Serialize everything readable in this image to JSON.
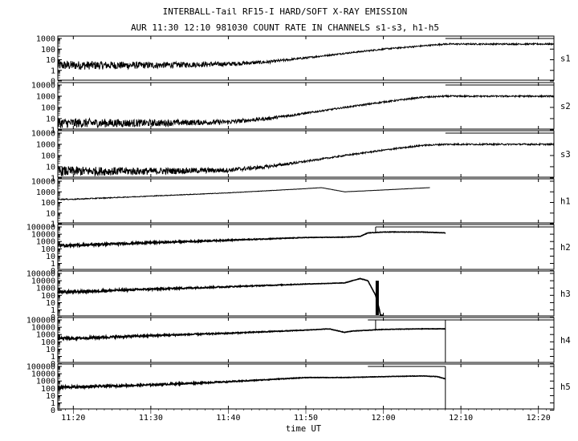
{
  "chart_data": {
    "type": "line",
    "title": "INTERBALL-Tail RF15-I HARD/SOFT X-RAY EMISSION",
    "subtitle": "AUR 11:30 12:10 981030  COUNT RATE IN CHANNELS s1-s3, h1-h5",
    "xlabel": "time UT",
    "x_ticks": [
      "11:20",
      "11:30",
      "11:40",
      "11:50",
      "12:00",
      "12:10",
      "12:20"
    ],
    "x_range": [
      "11:18",
      "12:22"
    ],
    "yscale": "log",
    "panels": [
      {
        "name": "s1",
        "ylim": [
          1,
          1000
        ],
        "yticks": [
          "1000",
          "100",
          "10",
          "1",
          "0"
        ],
        "x": [
          "11:18",
          "11:30",
          "11:40",
          "11:45",
          "11:50",
          "11:55",
          "12:00",
          "12:05",
          "12:08",
          "12:22"
        ],
        "values": [
          3,
          3,
          4,
          6,
          15,
          40,
          100,
          200,
          300,
          300
        ]
      },
      {
        "name": "s2",
        "ylim": [
          1,
          10000
        ],
        "yticks": [
          "10000",
          "1000",
          "100",
          "10",
          "1"
        ],
        "x": [
          "11:18",
          "11:30",
          "11:40",
          "11:45",
          "11:50",
          "11:55",
          "12:00",
          "12:05",
          "12:08",
          "12:22"
        ],
        "values": [
          4,
          4,
          5,
          10,
          30,
          100,
          300,
          800,
          1000,
          1000
        ]
      },
      {
        "name": "s3",
        "ylim": [
          1,
          10000
        ],
        "yticks": [
          "10000",
          "1000",
          "100",
          "10",
          "1"
        ],
        "x": [
          "11:18",
          "11:30",
          "11:40",
          "11:45",
          "11:50",
          "11:55",
          "12:00",
          "12:05",
          "12:08",
          "12:22"
        ],
        "values": [
          4,
          4,
          5,
          10,
          30,
          100,
          300,
          800,
          1000,
          1000
        ]
      },
      {
        "name": "h1",
        "ylim": [
          1,
          10000
        ],
        "yticks": [
          "10000",
          "1000",
          "100",
          "10",
          "1"
        ],
        "x": [
          "11:18",
          "11:20",
          "11:30",
          "11:40",
          "11:50",
          "11:52",
          "11:55",
          "12:00",
          "12:06"
        ],
        "values": [
          200,
          200,
          400,
          800,
          2000,
          2500,
          1000,
          1500,
          2500
        ]
      },
      {
        "name": "h2",
        "ylim": [
          0,
          100000
        ],
        "yticks": [
          "100000",
          "10000",
          "1000",
          "100",
          "10",
          "1",
          "0"
        ],
        "x": [
          "11:18",
          "11:20",
          "11:30",
          "11:40",
          "11:50",
          "11:55",
          "11:57",
          "11:58",
          "12:00",
          "12:05",
          "12:08"
        ],
        "values": [
          300,
          300,
          700,
          1500,
          3500,
          4000,
          5000,
          15000,
          20000,
          20000,
          15000
        ]
      },
      {
        "name": "h3",
        "ylim": [
          0,
          100000
        ],
        "yticks": [
          "100000",
          "10000",
          "1000",
          "100",
          "10",
          "1",
          "0"
        ],
        "x": [
          "11:18",
          "11:20",
          "11:30",
          "11:40",
          "11:50",
          "11:55",
          "11:57",
          "11:58",
          "11:59",
          "12:00"
        ],
        "values": [
          300,
          300,
          700,
          1500,
          3500,
          5000,
          20000,
          10000,
          100,
          0
        ]
      },
      {
        "name": "h4",
        "ylim": [
          0,
          100000
        ],
        "yticks": [
          "100000",
          "10000",
          "1000",
          "100",
          "10",
          "1",
          "0"
        ],
        "x": [
          "11:18",
          "11:20",
          "11:30",
          "11:40",
          "11:50",
          "11:53",
          "11:55",
          "11:56",
          "12:00",
          "12:05",
          "12:08"
        ],
        "values": [
          300,
          300,
          700,
          1500,
          4000,
          6000,
          2000,
          3000,
          5000,
          6000,
          6000
        ]
      },
      {
        "name": "h5",
        "ylim": [
          0,
          100000
        ],
        "yticks": [
          "100000",
          "10000",
          "1000",
          "100",
          "10",
          "1",
          "0"
        ],
        "x": [
          "11:18",
          "11:20",
          "11:30",
          "11:40",
          "11:50",
          "11:55",
          "12:00",
          "12:05",
          "12:07",
          "12:08"
        ],
        "values": [
          150,
          150,
          300,
          800,
          3000,
          3000,
          4000,
          5000,
          4000,
          2000
        ]
      }
    ]
  }
}
